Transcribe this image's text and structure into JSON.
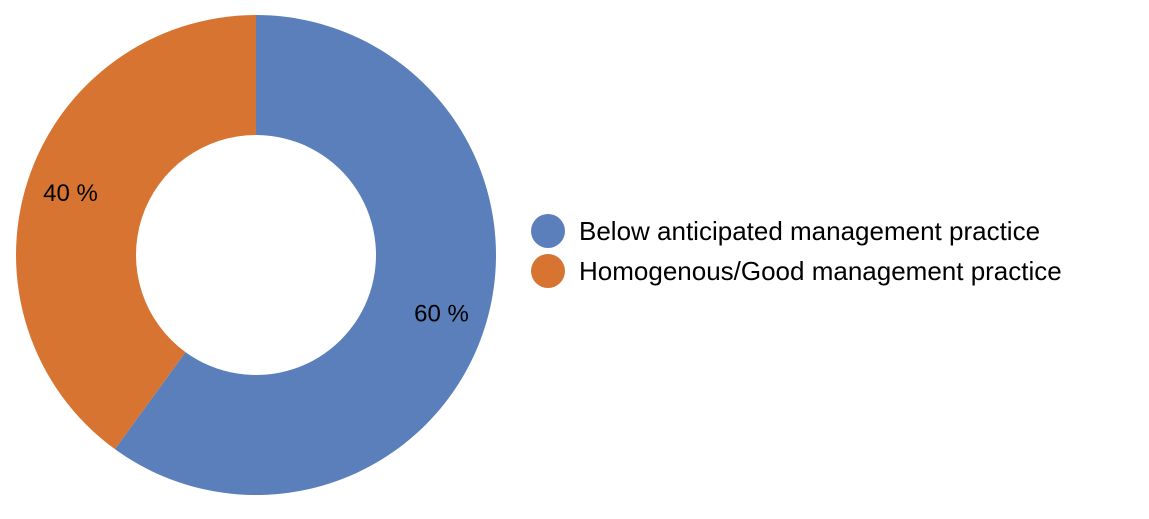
{
  "chart_data": {
    "type": "pie",
    "subtype": "donut",
    "title": "",
    "legend_position": "right",
    "series": [
      {
        "name": "Below anticipated management practice",
        "value": 60,
        "label": "60 %",
        "color": "#5B7FBB"
      },
      {
        "name": "Homogenous/Good management practice",
        "value": 40,
        "label": "40 %",
        "color": "#D87431"
      }
    ]
  }
}
